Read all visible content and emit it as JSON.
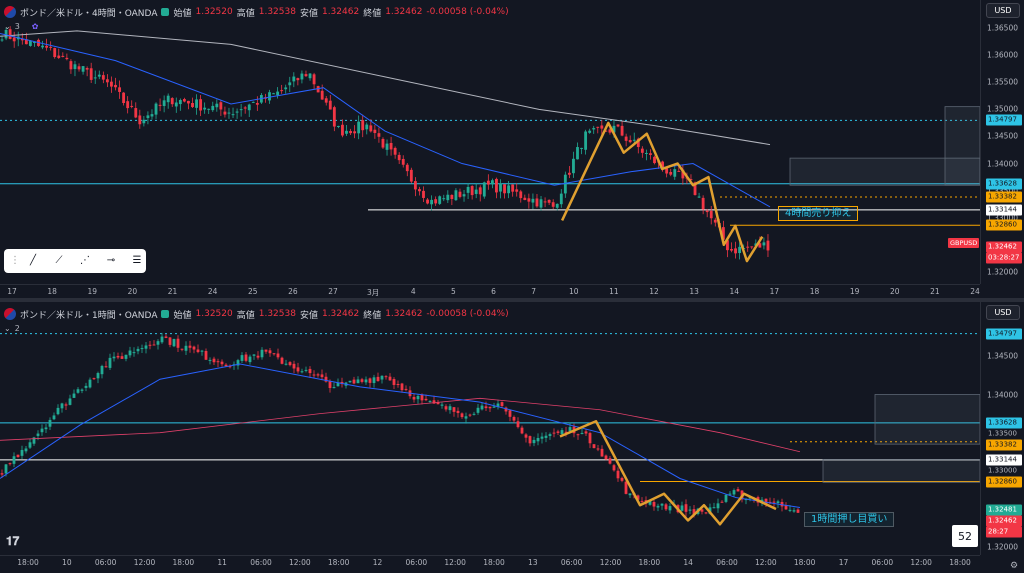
{
  "top": {
    "title": "ポンド／米ドル・4時間・OANDA",
    "open_label": "始値",
    "open": "1.32520",
    "high_label": "高値",
    "high": "1.32538",
    "low_label": "安値",
    "low": "1.32462",
    "close_label": "終値",
    "close": "1.32462",
    "change": "-0.00058 (-0.04%)",
    "collapse_count": "3",
    "currency": "USD",
    "y_ticks": [
      "1.36500",
      "1.36000",
      "1.35500",
      "1.35000",
      "1.34500",
      "1.34000",
      "1.33500",
      "1.33000",
      "1.32500",
      "1.32000"
    ],
    "price_tags": [
      {
        "value": "1.34797",
        "bg": "#2ec4e6",
        "fg": "#131722"
      },
      {
        "value": "1.33628",
        "bg": "#2ec4e6",
        "fg": "#131722"
      },
      {
        "value": "1.33382",
        "bg": "#f7a600",
        "fg": "#131722"
      },
      {
        "value": "1.33144",
        "bg": "#ffffff",
        "fg": "#131722"
      },
      {
        "value": "1.32860",
        "bg": "#f7a600",
        "fg": "#131722"
      },
      {
        "value": "1.32462",
        "bg": "#f23645",
        "fg": "#ffffff"
      },
      {
        "value": "03:28:27",
        "bg": "#f23645",
        "fg": "#ffffff"
      }
    ],
    "x_ticks": [
      "17",
      "18",
      "19",
      "20",
      "21",
      "24",
      "25",
      "26",
      "27",
      "3月",
      "4",
      "5",
      "6",
      "7",
      "10",
      "11",
      "12",
      "13",
      "14",
      "17",
      "18",
      "19",
      "20",
      "21",
      "24"
    ],
    "symbol_badge": "GBPUSD",
    "annotation": "4時間売り抑え"
  },
  "bottom": {
    "title": "ポンド／米ドル・1時間・OANDA",
    "open_label": "始値",
    "open": "1.32520",
    "high_label": "高値",
    "high": "1.32538",
    "low_label": "安値",
    "low": "1.32462",
    "close_label": "終値",
    "close": "1.32462",
    "change": "-0.00058 (-0.04%)",
    "collapse_count": "2",
    "currency": "USD",
    "y_ticks": [
      "1.34500",
      "1.34000",
      "1.33500",
      "1.33000",
      "1.32500",
      "1.32000"
    ],
    "price_tags": [
      {
        "value": "1.34797",
        "bg": "#2ec4e6",
        "fg": "#131722"
      },
      {
        "value": "1.33628",
        "bg": "#2ec4e6",
        "fg": "#131722"
      },
      {
        "value": "1.33500",
        "bg": "#131722",
        "fg": "#b2b5be"
      },
      {
        "value": "1.33382",
        "bg": "#f7a600",
        "fg": "#131722"
      },
      {
        "value": "1.33144",
        "bg": "#ffffff",
        "fg": "#131722"
      },
      {
        "value": "1.33000",
        "bg": "#131722",
        "fg": "#b2b5be"
      },
      {
        "value": "1.32860",
        "bg": "#f7a600",
        "fg": "#131722"
      },
      {
        "value": "1.32481",
        "bg": "#22ab94",
        "fg": "#ffffff"
      },
      {
        "value": "1.32462",
        "bg": "#f23645",
        "fg": "#ffffff"
      },
      {
        "value": "28:27",
        "bg": "#f23645",
        "fg": "#ffffff"
      }
    ],
    "x_ticks": [
      "18:00",
      "10",
      "06:00",
      "12:00",
      "18:00",
      "11",
      "06:00",
      "12:00",
      "18:00",
      "12",
      "06:00",
      "12:00",
      "18:00",
      "13",
      "06:00",
      "12:00",
      "18:00",
      "14",
      "06:00",
      "12:00",
      "18:00",
      "17",
      "06:00",
      "12:00",
      "18:00"
    ],
    "annotation": "1時間押し目買い",
    "bar_count_badge": "52"
  },
  "colors": {
    "up": "#22ab94",
    "down": "#f23645",
    "cyan": "#2ec4e6",
    "orange": "#f7a600",
    "zigzag": "#e0a030"
  }
}
